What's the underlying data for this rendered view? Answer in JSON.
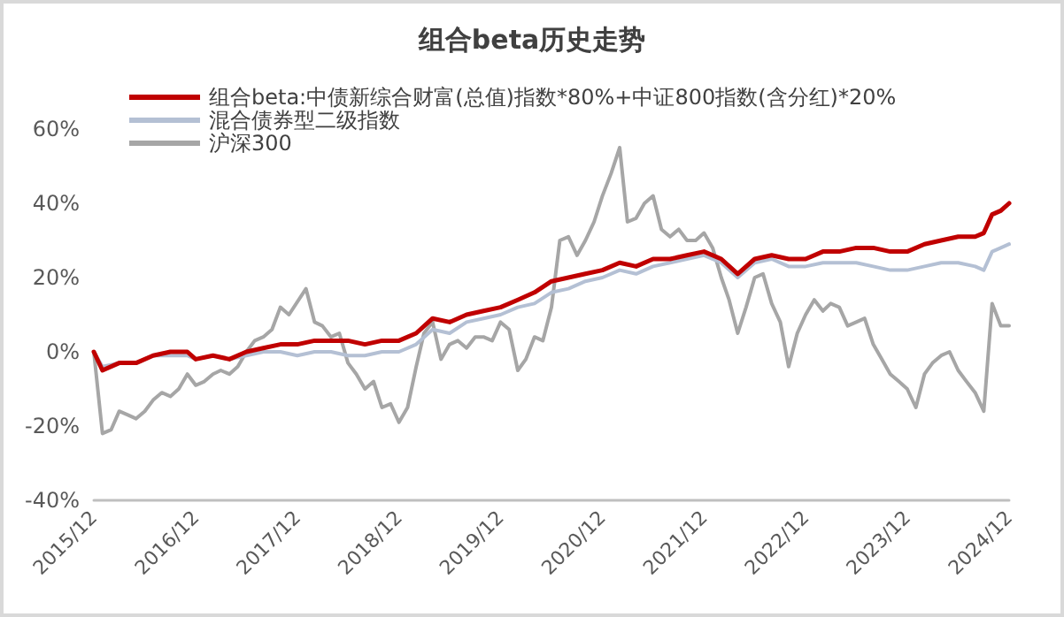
{
  "chart_data": {
    "type": "line",
    "title": "组合beta历史走势",
    "legend": "top left",
    "grid": false,
    "line_style": "solid",
    "marker": "none",
    "xlim": [
      "2015-12",
      "2024-12"
    ],
    "xticks": [
      {
        "value": "2015-12",
        "label": "2015/12"
      },
      {
        "value": "2016-12",
        "label": "2016/12"
      },
      {
        "value": "2017-12",
        "label": "2017/12"
      },
      {
        "value": "2018-12",
        "label": "2018/12"
      },
      {
        "value": "2019-12",
        "label": "2019/12"
      },
      {
        "value": "2020-12",
        "label": "2020/12"
      },
      {
        "value": "2021-12",
        "label": "2021/12"
      },
      {
        "value": "2022-12",
        "label": "2022/12"
      },
      {
        "value": "2023-12",
        "label": "2023/12"
      },
      {
        "value": "2024-12",
        "label": "2024/12"
      }
    ],
    "ylim": [
      -40,
      60
    ],
    "yticks": [
      {
        "value": -40,
        "label": "-40%"
      },
      {
        "value": -20,
        "label": "-20%"
      },
      {
        "value": 0,
        "label": "0%"
      },
      {
        "value": 20,
        "label": "20%"
      },
      {
        "value": 40,
        "label": "40%"
      },
      {
        "value": 60,
        "label": "60%"
      }
    ],
    "x": [
      "2015-12",
      "2016-01",
      "2016-03",
      "2016-05",
      "2016-07",
      "2016-09",
      "2016-11",
      "2016-12",
      "2017-02",
      "2017-04",
      "2017-06",
      "2017-08",
      "2017-10",
      "2017-12",
      "2018-02",
      "2018-04",
      "2018-06",
      "2018-08",
      "2018-10",
      "2018-12",
      "2019-02",
      "2019-04",
      "2019-06",
      "2019-08",
      "2019-10",
      "2019-12",
      "2020-02",
      "2020-04",
      "2020-06",
      "2020-08",
      "2020-10",
      "2020-12",
      "2021-02",
      "2021-04",
      "2021-06",
      "2021-08",
      "2021-10",
      "2021-12",
      "2022-02",
      "2022-04",
      "2022-06",
      "2022-08",
      "2022-10",
      "2022-12",
      "2023-02",
      "2023-04",
      "2023-06",
      "2023-08",
      "2023-10",
      "2023-12",
      "2024-02",
      "2024-04",
      "2024-06",
      "2024-08",
      "2024-09",
      "2024-10",
      "2024-11",
      "2024-12"
    ],
    "series": [
      {
        "name": "组合beta:中债新综合财富(总值)指数*80%+中证800指数(含分红)*20%",
        "color": "#c00000",
        "values": [
          0,
          -5,
          -3,
          -3,
          -1,
          0,
          0,
          -2,
          -1,
          -2,
          0,
          1,
          2,
          2,
          3,
          3,
          3,
          2,
          3,
          3,
          5,
          9,
          8,
          10,
          11,
          12,
          14,
          16,
          19,
          20,
          21,
          22,
          24,
          23,
          25,
          25,
          26,
          27,
          25,
          21,
          25,
          26,
          25,
          25,
          27,
          27,
          28,
          28,
          27,
          27,
          29,
          30,
          31,
          31,
          32,
          37,
          38,
          40
        ]
      },
      {
        "name": "混合债券型二级指数",
        "color": "#b4c0d4",
        "values": [
          0,
          -4,
          -3,
          -3,
          -1,
          -1,
          -1,
          -2,
          -1,
          -2,
          -1,
          0,
          0,
          -1,
          0,
          0,
          -1,
          -1,
          0,
          0,
          2,
          6,
          5,
          8,
          9,
          10,
          12,
          13,
          16,
          17,
          19,
          20,
          22,
          21,
          23,
          24,
          25,
          26,
          24,
          20,
          24,
          25,
          23,
          23,
          24,
          24,
          24,
          23,
          22,
          22,
          23,
          24,
          24,
          23,
          22,
          27,
          28,
          29
        ]
      },
      {
        "name": "沪深300",
        "color": "#a6a6a6",
        "x": [
          "2015-12",
          "2016-01",
          "2016-02",
          "2016-03",
          "2016-04",
          "2016-05",
          "2016-06",
          "2016-07",
          "2016-08",
          "2016-09",
          "2016-10",
          "2016-11",
          "2016-12",
          "2017-01",
          "2017-02",
          "2017-03",
          "2017-04",
          "2017-05",
          "2017-06",
          "2017-07",
          "2017-08",
          "2017-09",
          "2017-10",
          "2017-11",
          "2018-01",
          "2018-02",
          "2018-03",
          "2018-04",
          "2018-05",
          "2018-06",
          "2018-07",
          "2018-08",
          "2018-09",
          "2018-10",
          "2018-11",
          "2018-12",
          "2019-01",
          "2019-02",
          "2019-03",
          "2019-04",
          "2019-05",
          "2019-06",
          "2019-07",
          "2019-08",
          "2019-09",
          "2019-10",
          "2019-11",
          "2019-12",
          "2020-01",
          "2020-02",
          "2020-03",
          "2020-04",
          "2020-05",
          "2020-06",
          "2020-07",
          "2020-08",
          "2020-09",
          "2020-10",
          "2020-11",
          "2020-12",
          "2021-01",
          "2021-02",
          "2021-03",
          "2021-04",
          "2021-05",
          "2021-06",
          "2021-07",
          "2021-08",
          "2021-09",
          "2021-10",
          "2021-11",
          "2021-12",
          "2022-01",
          "2022-02",
          "2022-03",
          "2022-04",
          "2022-05",
          "2022-06",
          "2022-07",
          "2022-08",
          "2022-09",
          "2022-10",
          "2022-11",
          "2022-12",
          "2023-01",
          "2023-02",
          "2023-03",
          "2023-04",
          "2023-05",
          "2023-06",
          "2023-07",
          "2023-08",
          "2023-09",
          "2023-10",
          "2023-11",
          "2023-12",
          "2024-01",
          "2024-02",
          "2024-03",
          "2024-04",
          "2024-05",
          "2024-06",
          "2024-07",
          "2024-08",
          "2024-09",
          "2024-10",
          "2024-11",
          "2024-12"
        ],
        "values": [
          0,
          -22,
          -21,
          -16,
          -17,
          -18,
          -16,
          -13,
          -11,
          -12,
          -10,
          -6,
          -9,
          -8,
          -6,
          -5,
          -6,
          -4,
          0,
          3,
          4,
          6,
          12,
          10,
          17,
          8,
          7,
          4,
          5,
          -3,
          -6,
          -10,
          -8,
          -15,
          -14,
          -19,
          -15,
          -4,
          5,
          8,
          -2,
          2,
          3,
          1,
          4,
          4,
          3,
          8,
          6,
          -5,
          -2,
          4,
          3,
          12,
          30,
          31,
          26,
          30,
          35,
          42,
          48,
          55,
          35,
          36,
          40,
          42,
          33,
          31,
          33,
          30,
          30,
          32,
          28,
          20,
          14,
          5,
          12,
          20,
          21,
          13,
          8,
          -4,
          5,
          10,
          14,
          11,
          13,
          12,
          7,
          8,
          9,
          2,
          -2,
          -6,
          -8,
          -10,
          -15,
          -6,
          -3,
          -1,
          0,
          -5,
          -8,
          -11,
          -16,
          13,
          7,
          7
        ]
      }
    ]
  }
}
